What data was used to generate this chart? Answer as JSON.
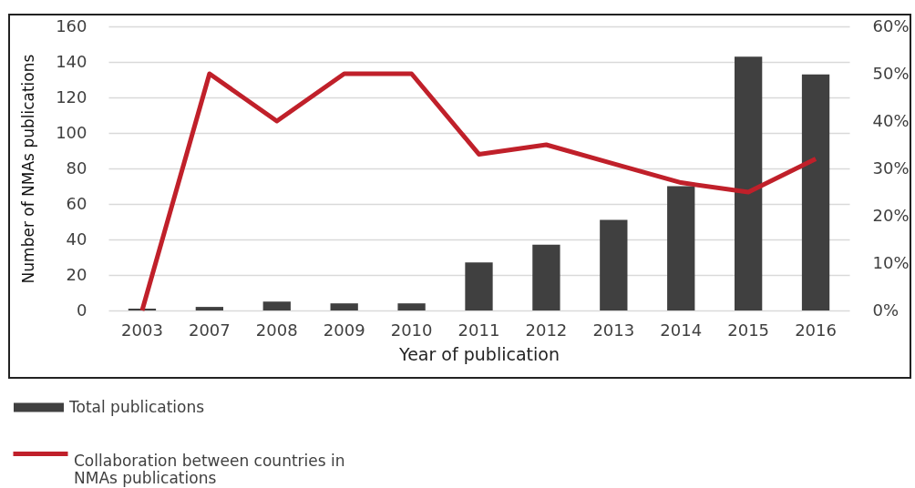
{
  "chart_data": {
    "type": "bar",
    "xlabel": "Year of publication",
    "ylabel": "Number of NMAs publications",
    "categories": [
      "2003",
      "2007",
      "2008",
      "2009",
      "2010",
      "2011",
      "2012",
      "2013",
      "2014",
      "2015",
      "2016"
    ],
    "series": [
      {
        "name": "Total publications",
        "color": "#404040",
        "values": [
          1,
          2,
          5,
          4,
          4,
          27,
          37,
          51,
          70,
          143,
          133
        ]
      },
      {
        "name": "Collaboration between countries in NMAs publications",
        "type": "line",
        "axis": "y2",
        "color": "#c0202a",
        "values": [
          0,
          50,
          40,
          50,
          50,
          33,
          35,
          31,
          27,
          25,
          32
        ]
      }
    ],
    "ylim": [
      0,
      160
    ],
    "yticks": [
      0,
      20,
      40,
      60,
      80,
      100,
      120,
      140,
      160
    ],
    "y2lim": [
      0,
      60
    ],
    "y2ticks": [
      {
        "value": 0,
        "label": "0%"
      },
      {
        "value": 10,
        "label": "10%"
      },
      {
        "value": 20,
        "label": "20%"
      },
      {
        "value": 30,
        "label": "30%"
      },
      {
        "value": 40,
        "label": "40%"
      },
      {
        "value": 50,
        "label": "50%"
      },
      {
        "value": 60,
        "label": "60%"
      }
    ],
    "grid": "y",
    "legend": "bottom"
  }
}
